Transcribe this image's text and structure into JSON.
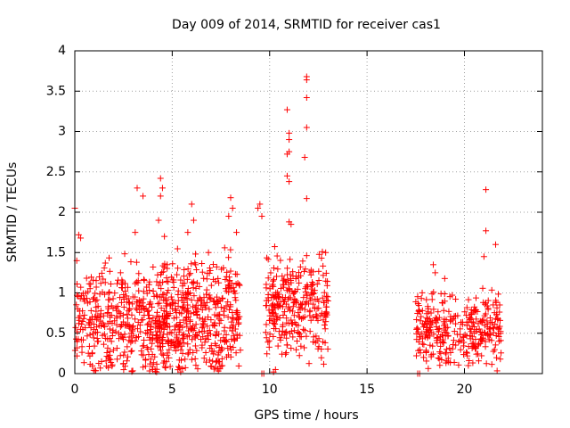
{
  "chart_data": {
    "type": "scatter",
    "title": "Day 009 of 2014, SRMTID for receiver cas1",
    "xlabel": "GPS time / hours",
    "ylabel": "SRMTID / TECUs",
    "xlim": [
      0,
      24
    ],
    "ylim": [
      0,
      4
    ],
    "x_ticks": [
      0,
      5,
      10,
      15,
      20
    ],
    "x_tick_labels": [
      "0",
      "5",
      "10",
      "15",
      "20"
    ],
    "y_ticks": [
      0,
      0.5,
      1,
      1.5,
      2,
      2.5,
      3,
      3.5,
      4
    ],
    "y_tick_labels": [
      "0",
      "0.5",
      "1",
      "1.5",
      "2",
      "2.5",
      "3",
      "3.5",
      "4"
    ],
    "grid": true,
    "marker": "+",
    "color": "#ff0000",
    "series": [
      {
        "name": "SRMTID",
        "clusters": [
          {
            "x_range": [
              0.0,
              4.8
            ],
            "count": 430,
            "y_center": 0.65,
            "y_spread": 0.32
          },
          {
            "x_range": [
              4.4,
              8.5
            ],
            "count": 430,
            "y_center": 0.7,
            "y_spread": 0.35
          },
          {
            "x_range": [
              9.8,
              13.0
            ],
            "count": 300,
            "y_center": 0.85,
            "y_spread": 0.3
          },
          {
            "x_range": [
              17.5,
              21.9
            ],
            "count": 330,
            "y_center": 0.55,
            "y_spread": 0.22
          }
        ],
        "outliers": [
          [
            0.0,
            2.05
          ],
          [
            0.2,
            1.72
          ],
          [
            0.3,
            1.68
          ],
          [
            0.1,
            1.4
          ],
          [
            3.2,
            2.3
          ],
          [
            3.5,
            2.2
          ],
          [
            3.1,
            1.75
          ],
          [
            4.4,
            2.42
          ],
          [
            4.5,
            2.3
          ],
          [
            4.4,
            2.2
          ],
          [
            4.3,
            1.9
          ],
          [
            4.6,
            1.7
          ],
          [
            6.0,
            2.1
          ],
          [
            6.1,
            1.9
          ],
          [
            5.8,
            1.75
          ],
          [
            8.0,
            2.18
          ],
          [
            8.1,
            2.05
          ],
          [
            7.9,
            1.95
          ],
          [
            8.3,
            1.75
          ],
          [
            9.5,
            2.1
          ],
          [
            9.4,
            2.05
          ],
          [
            9.6,
            1.95
          ],
          [
            10.9,
            3.27
          ],
          [
            11.0,
            2.98
          ],
          [
            11.0,
            2.9
          ],
          [
            11.0,
            2.75
          ],
          [
            10.9,
            2.72
          ],
          [
            10.9,
            2.45
          ],
          [
            11.0,
            2.38
          ],
          [
            11.0,
            1.88
          ],
          [
            11.1,
            1.85
          ],
          [
            11.9,
            3.68
          ],
          [
            11.9,
            3.64
          ],
          [
            11.9,
            3.42
          ],
          [
            11.9,
            3.05
          ],
          [
            11.8,
            2.68
          ],
          [
            11.9,
            2.17
          ],
          [
            18.4,
            1.35
          ],
          [
            18.5,
            1.25
          ],
          [
            21.1,
            2.28
          ],
          [
            21.1,
            1.77
          ],
          [
            21.0,
            1.45
          ],
          [
            21.6,
            1.6
          ],
          [
            9.6,
            0.0
          ],
          [
            9.7,
            0.0
          ],
          [
            17.6,
            0.0
          ],
          [
            17.7,
            0.0
          ],
          [
            4.2,
            0.02
          ],
          [
            4.0,
            0.05
          ],
          [
            10.2,
            0.02
          ],
          [
            10.3,
            0.05
          ]
        ]
      }
    ]
  }
}
